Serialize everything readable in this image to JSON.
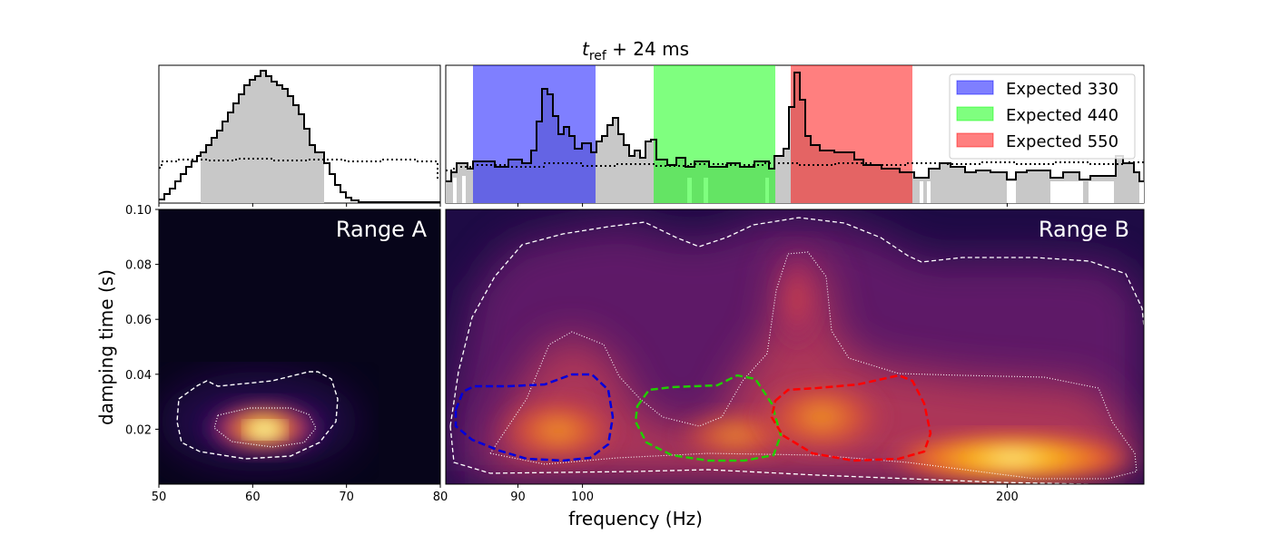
{
  "figure": {
    "title_main": "t",
    "title_sub": "ref",
    "title_rest": " + 24 ms",
    "xlabel": "frequency (Hz)",
    "ylabel": "damping time (s)"
  },
  "chart_data": [
    {
      "type": "heatmap",
      "panel": "Range A",
      "label": "Range A",
      "xlim": [
        50,
        80
      ],
      "ylim": [
        0,
        0.1
      ],
      "x_ticks": [
        "50",
        "60",
        "70",
        "80"
      ],
      "x_tick_values": [
        50,
        60,
        70,
        80
      ],
      "y_ticks": [
        "0.02",
        "0.04",
        "0.06",
        "0.08",
        "0.10"
      ],
      "y_tick_values": [
        0.02,
        0.04,
        0.06,
        0.08,
        0.1
      ],
      "peak": {
        "x": 60,
        "y": 0.02
      },
      "marginal_histogram": {
        "x": [
          50,
          52,
          54,
          56,
          58,
          60,
          62,
          64,
          66,
          68,
          70,
          72,
          74,
          76,
          78,
          80
        ],
        "values": [
          0.05,
          0.15,
          0.38,
          0.52,
          0.7,
          0.92,
          0.83,
          0.62,
          0.32,
          0.1,
          0.01,
          0.005,
          0.0,
          0.0,
          0.0,
          0.0
        ],
        "prior_level": 0.3
      }
    },
    {
      "type": "heatmap",
      "panel": "Range B",
      "label": "Range B",
      "xlim": [
        80,
        250
      ],
      "ylim": [
        0,
        0.1
      ],
      "x_ticks": [
        "80",
        "90",
        "100",
        "200"
      ],
      "x_tick_values": [
        80,
        90,
        100,
        200
      ],
      "peak": {
        "x": 200,
        "y": 0.01
      },
      "expected_bands": [
        {
          "name": "Expected 330",
          "xmin": 84,
          "xmax": 105,
          "color": "#7f7fff"
        },
        {
          "name": "Expected 440",
          "xmin": 117,
          "xmax": 141,
          "color": "#7fff7f"
        },
        {
          "name": "Expected 550",
          "xmin": 145,
          "xmax": 178,
          "color": "#ff7f7f"
        }
      ],
      "marginal_histogram": {
        "x": [
          80,
          85,
          90,
          95,
          98,
          100,
          103,
          107,
          112,
          117,
          125,
          135,
          143,
          146,
          150,
          160,
          175,
          185,
          200,
          215,
          230,
          245,
          250
        ],
        "values": [
          0.2,
          0.3,
          0.3,
          0.38,
          0.82,
          0.55,
          0.42,
          0.6,
          0.45,
          0.32,
          0.28,
          0.3,
          0.28,
          0.98,
          0.4,
          0.35,
          0.25,
          0.3,
          0.25,
          0.22,
          0.2,
          0.32,
          0.2
        ],
        "prior_level": 0.28
      }
    }
  ]
}
